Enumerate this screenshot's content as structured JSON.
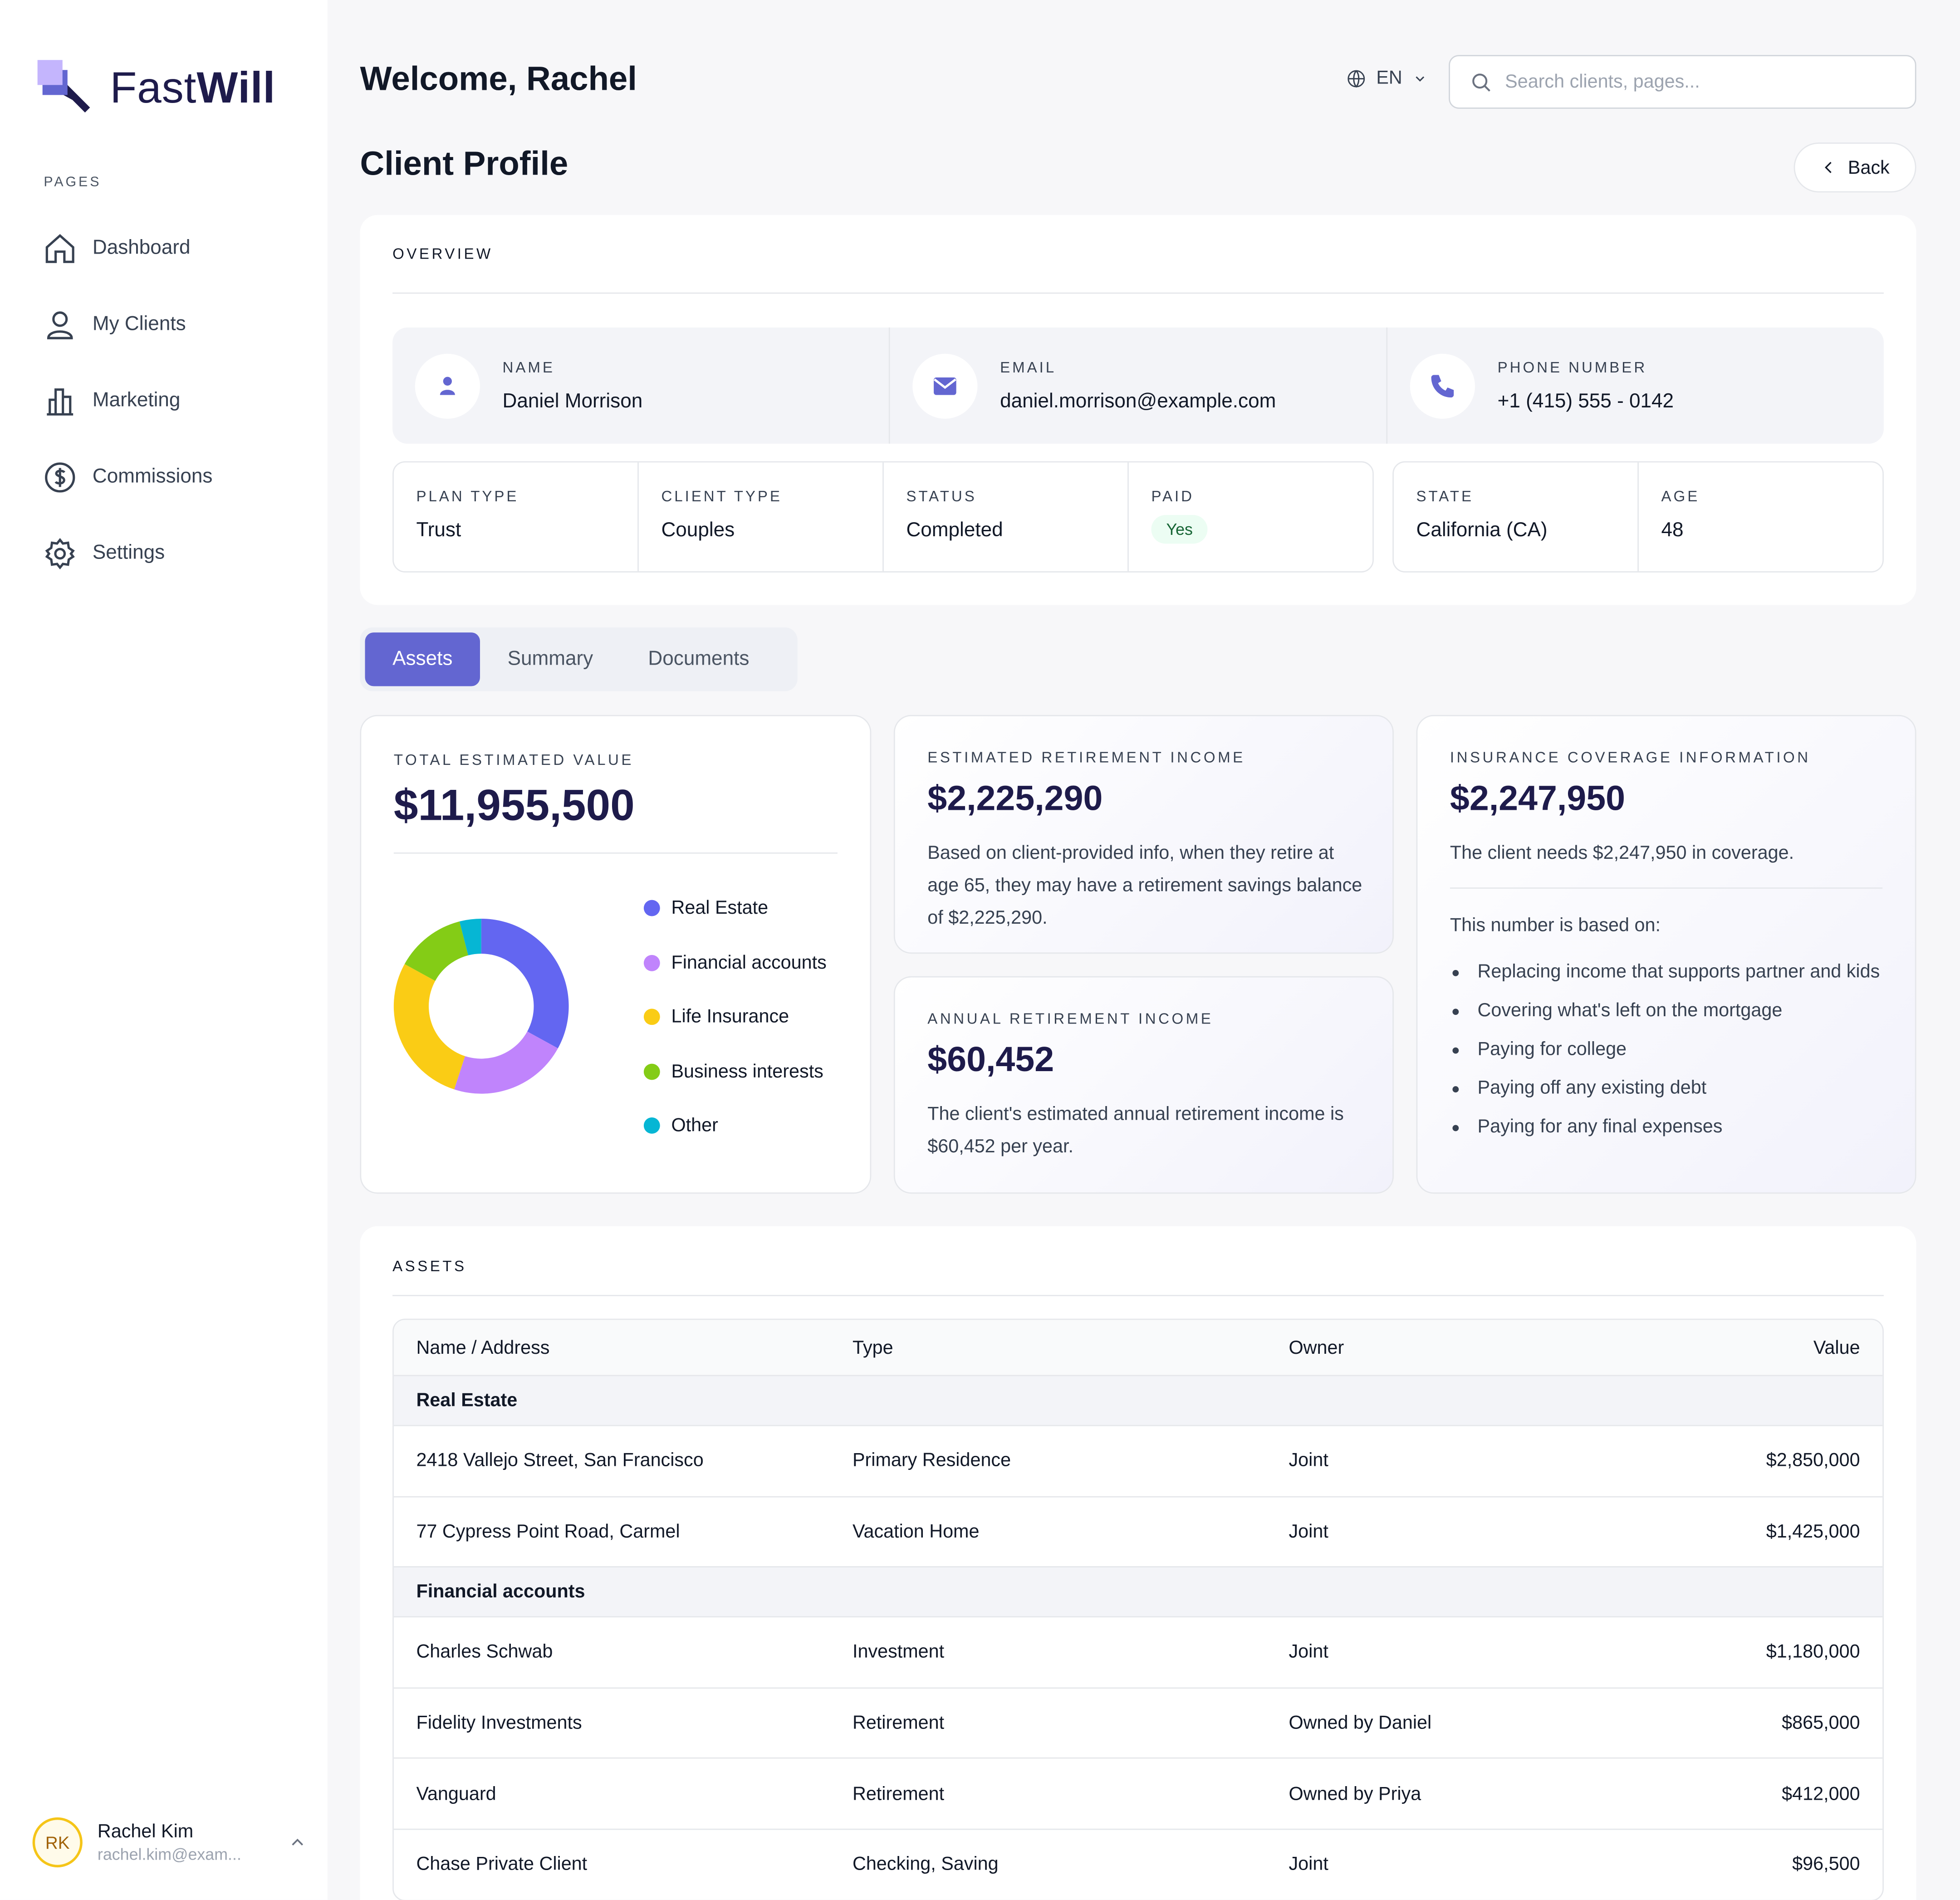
{
  "brand": {
    "name_light": "Fast",
    "name_bold": "Will"
  },
  "sidebar": {
    "section_label": "PAGES",
    "items": [
      {
        "label": "Dashboard",
        "icon": "home-icon"
      },
      {
        "label": "My Clients",
        "icon": "user-icon"
      },
      {
        "label": "Marketing",
        "icon": "bar-chart-icon"
      },
      {
        "label": "Commissions",
        "icon": "dollar-icon"
      },
      {
        "label": "Settings",
        "icon": "gear-icon"
      }
    ],
    "user": {
      "initials": "RK",
      "name": "Rachel Kim",
      "email": "rachel.kim@exam..."
    }
  },
  "header": {
    "welcome": "Welcome, Rachel",
    "language": "EN",
    "search_placeholder": "Search clients, pages..."
  },
  "page": {
    "title": "Client Profile",
    "back_label": "Back"
  },
  "overview": {
    "label": "OVERVIEW",
    "contacts": [
      {
        "label": "NAME",
        "value": "Daniel Morrison",
        "icon": "person-icon"
      },
      {
        "label": "EMAIL",
        "value": "daniel.morrison@example.com",
        "icon": "mail-icon"
      },
      {
        "label": "PHONE NUMBER",
        "value": "+1 (415) 555 - 0142",
        "icon": "phone-icon"
      }
    ],
    "meta_left": [
      {
        "label": "PLAN TYPE",
        "value": "Trust"
      },
      {
        "label": "CLIENT TYPE",
        "value": "Couples"
      },
      {
        "label": "STATUS",
        "value": "Completed"
      },
      {
        "label": "PAID",
        "value": "Yes"
      }
    ],
    "meta_right": [
      {
        "label": "STATE",
        "value": "California (CA)"
      },
      {
        "label": "AGE",
        "value": "48"
      }
    ]
  },
  "tabs": [
    {
      "label": "Assets",
      "active": true
    },
    {
      "label": "Summary",
      "active": false
    },
    {
      "label": "Documents",
      "active": false
    }
  ],
  "total_value": {
    "label": "TOTAL ESTIMATED VALUE",
    "value": "$11,955,500",
    "chart_data": {
      "type": "pie",
      "categories": [
        "Real Estate",
        "Financial accounts",
        "Life Insurance",
        "Business interests",
        "Other"
      ],
      "values": [
        33,
        22,
        28,
        13,
        4
      ],
      "colors": [
        "#6366f1",
        "#c084fc",
        "#facc15",
        "#84cc16",
        "#06b6d4"
      ]
    }
  },
  "retirement": {
    "label": "ESTIMATED RETIREMENT INCOME",
    "value": "$2,225,290",
    "description": "Based on client-provided info, when they retire at age 65, they may have a retirement savings balance of $2,225,290."
  },
  "annual": {
    "label": "ANNUAL RETIREMENT INCOME",
    "value": "$60,452",
    "description": "The client's estimated annual retirement income is $60,452 per year."
  },
  "insurance": {
    "label": "INSURANCE COVERAGE INFORMATION",
    "value": "$2,247,950",
    "description": "The client needs $2,247,950 in coverage.",
    "based_on": "This number is based on:",
    "bullets": [
      "Replacing income that supports partner and kids",
      "Covering what's left on the mortgage",
      "Paying for college",
      "Paying off any existing debt",
      "Paying for any final expenses"
    ]
  },
  "assets": {
    "label": "ASSETS",
    "columns": [
      "Name / Address",
      "Type",
      "Owner",
      "Value"
    ],
    "groups": [
      {
        "name": "Real Estate",
        "rows": [
          [
            "2418 Vallejo Street, San Francisco",
            "Primary Residence",
            "Joint",
            "$2,850,000"
          ],
          [
            "77 Cypress Point Road, Carmel",
            "Vacation Home",
            "Joint",
            "$1,425,000"
          ]
        ]
      },
      {
        "name": "Financial accounts",
        "rows": [
          [
            "Charles Schwab",
            "Investment",
            "Joint",
            "$1,180,000"
          ],
          [
            "Fidelity Investments",
            "Retirement",
            "Owned by Daniel",
            "$865,000"
          ],
          [
            "Vanguard",
            "Retirement",
            "Owned by Priya",
            "$412,000"
          ],
          [
            "Chase Private Client",
            "Checking, Saving",
            "Joint",
            "$96,500"
          ]
        ]
      }
    ]
  }
}
